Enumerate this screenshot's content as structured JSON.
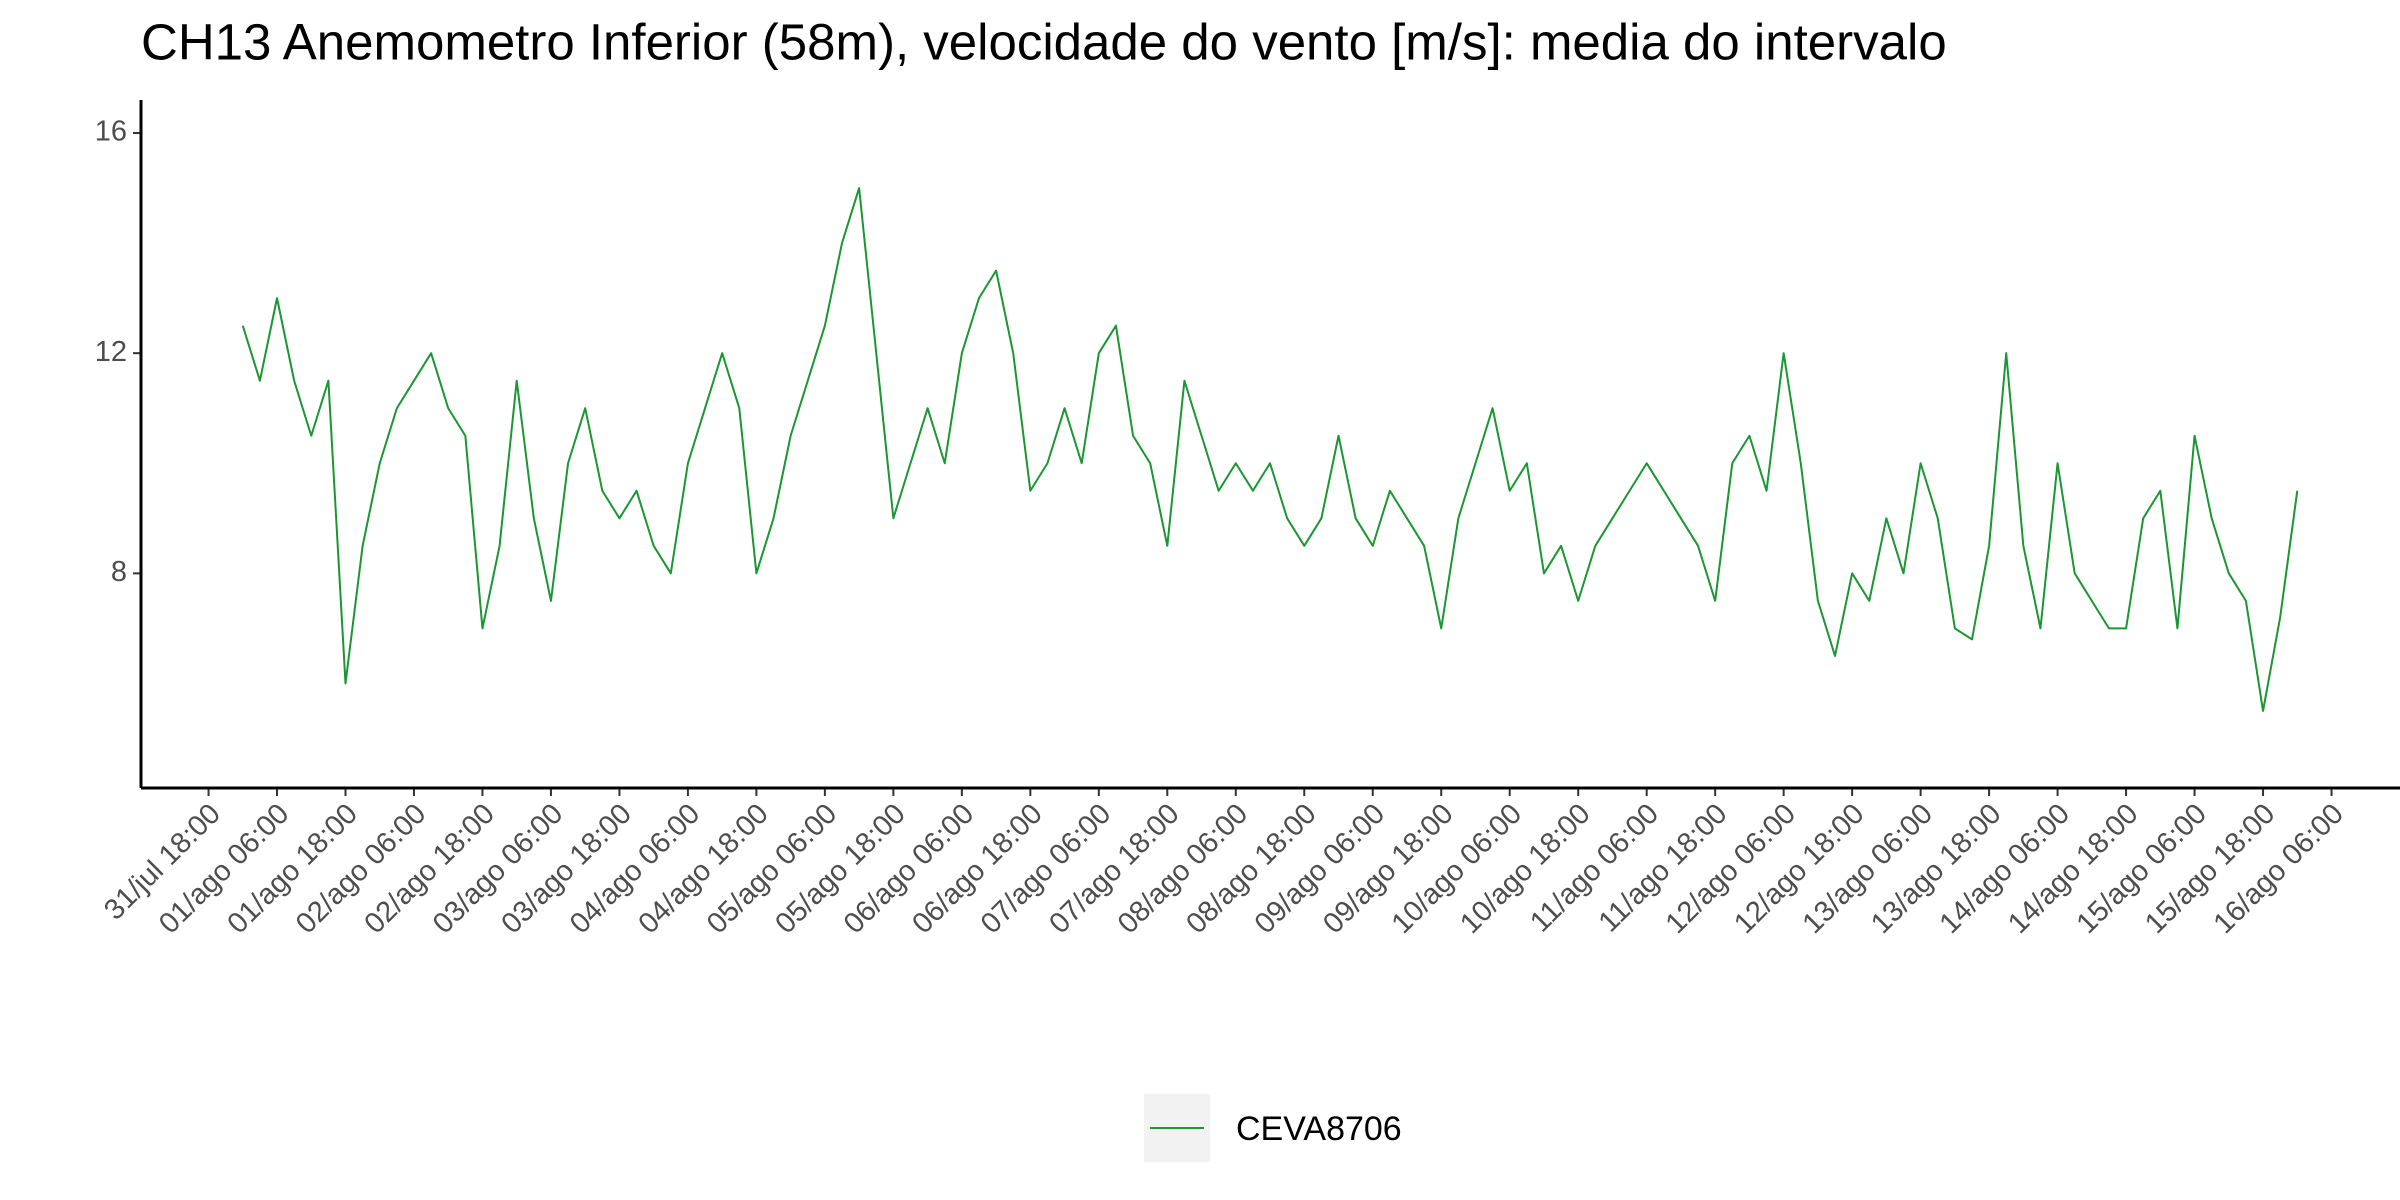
{
  "chart_data": {
    "type": "line",
    "title": "CH13 Anemometro Inferior (58m), velocidade do vento [m/s]: media do intervalo",
    "x": [
      "01/ago 00:00",
      "01/ago 03:00",
      "01/ago 06:00",
      "01/ago 09:00",
      "01/ago 12:00",
      "01/ago 15:00",
      "01/ago 18:00",
      "01/ago 21:00",
      "02/ago 00:00",
      "02/ago 03:00",
      "02/ago 06:00",
      "02/ago 09:00",
      "02/ago 12:00",
      "02/ago 15:00",
      "02/ago 18:00",
      "02/ago 21:00",
      "03/ago 00:00",
      "03/ago 03:00",
      "03/ago 06:00",
      "03/ago 09:00",
      "03/ago 12:00",
      "03/ago 15:00",
      "03/ago 18:00",
      "03/ago 21:00",
      "04/ago 00:00",
      "04/ago 03:00",
      "04/ago 06:00",
      "04/ago 09:00",
      "04/ago 12:00",
      "04/ago 15:00",
      "04/ago 18:00",
      "04/ago 21:00",
      "05/ago 00:00",
      "05/ago 03:00",
      "05/ago 06:00",
      "05/ago 09:00",
      "05/ago 12:00",
      "05/ago 15:00",
      "05/ago 18:00",
      "05/ago 21:00",
      "06/ago 00:00",
      "06/ago 03:00",
      "06/ago 06:00",
      "06/ago 09:00",
      "06/ago 12:00",
      "06/ago 15:00",
      "06/ago 18:00",
      "06/ago 21:00",
      "07/ago 00:00",
      "07/ago 03:00",
      "07/ago 06:00",
      "07/ago 09:00",
      "07/ago 12:00",
      "07/ago 15:00",
      "07/ago 18:00",
      "07/ago 21:00",
      "08/ago 00:00",
      "08/ago 03:00",
      "08/ago 06:00",
      "08/ago 09:00",
      "08/ago 12:00",
      "08/ago 15:00",
      "08/ago 18:00",
      "08/ago 21:00",
      "09/ago 00:00",
      "09/ago 03:00",
      "09/ago 06:00",
      "09/ago 09:00",
      "09/ago 12:00",
      "09/ago 15:00",
      "09/ago 18:00",
      "09/ago 21:00",
      "10/ago 00:00",
      "10/ago 03:00",
      "10/ago 06:00",
      "10/ago 09:00",
      "10/ago 12:00",
      "10/ago 15:00",
      "10/ago 18:00",
      "10/ago 21:00",
      "11/ago 00:00",
      "11/ago 03:00",
      "11/ago 06:00",
      "11/ago 09:00",
      "11/ago 12:00",
      "11/ago 15:00",
      "11/ago 18:00",
      "11/ago 21:00",
      "12/ago 00:00",
      "12/ago 03:00",
      "12/ago 06:00",
      "12/ago 09:00",
      "12/ago 12:00",
      "12/ago 15:00",
      "12/ago 18:00",
      "12/ago 21:00",
      "13/ago 00:00",
      "13/ago 03:00",
      "13/ago 06:00",
      "13/ago 09:00",
      "13/ago 12:00",
      "13/ago 15:00",
      "13/ago 18:00",
      "13/ago 21:00",
      "14/ago 00:00",
      "14/ago 03:00",
      "14/ago 06:00",
      "14/ago 09:00",
      "14/ago 12:00",
      "14/ago 15:00",
      "14/ago 18:00",
      "14/ago 21:00",
      "15/ago 00:00",
      "15/ago 03:00",
      "15/ago 06:00",
      "15/ago 09:00",
      "15/ago 12:00",
      "15/ago 15:00",
      "15/ago 18:00",
      "15/ago 21:00",
      "16/ago 00:00"
    ],
    "series": [
      {
        "name": "CEVA8706",
        "color": "#1a9632",
        "values": [
          12.5,
          11.5,
          13.0,
          11.5,
          10.5,
          11.5,
          6.0,
          8.5,
          10.0,
          11.0,
          11.5,
          12.0,
          11.0,
          10.5,
          7.0,
          8.5,
          11.5,
          9.0,
          7.5,
          10.0,
          11.0,
          9.5,
          9.0,
          9.5,
          8.5,
          8.0,
          10.0,
          11.0,
          12.0,
          11.0,
          8.0,
          9.0,
          10.5,
          11.5,
          12.5,
          14.0,
          15.0,
          12.0,
          9.0,
          10.0,
          11.0,
          10.0,
          12.0,
          13.0,
          13.5,
          12.0,
          9.5,
          10.0,
          11.0,
          10.0,
          12.0,
          12.5,
          10.5,
          10.0,
          8.5,
          11.5,
          10.5,
          9.5,
          10.0,
          9.5,
          10.0,
          9.0,
          8.5,
          9.0,
          10.5,
          9.0,
          8.5,
          9.5,
          9.0,
          8.5,
          7.0,
          9.0,
          10.0,
          11.0,
          9.5,
          10.0,
          8.0,
          8.5,
          7.5,
          8.5,
          9.0,
          9.5,
          10.0,
          9.5,
          9.0,
          8.5,
          7.5,
          10.0,
          10.5,
          9.5,
          12.0,
          10.0,
          7.5,
          6.5,
          8.0,
          7.5,
          9.0,
          8.0,
          10.0,
          9.0,
          7.0,
          6.8,
          8.5,
          12.0,
          8.5,
          7.0,
          10.0,
          8.0,
          7.5,
          7.0,
          7.0,
          9.0,
          9.5,
          7.0,
          10.5,
          9.0,
          8.0,
          7.5,
          5.5,
          7.2,
          9.5
        ]
      }
    ],
    "xticks": [
      "31/jul 18:00",
      "01/ago 06:00",
      "01/ago 18:00",
      "02/ago 06:00",
      "02/ago 18:00",
      "03/ago 06:00",
      "03/ago 18:00",
      "04/ago 06:00",
      "04/ago 18:00",
      "05/ago 06:00",
      "05/ago 18:00",
      "06/ago 06:00",
      "06/ago 18:00",
      "07/ago 06:00",
      "07/ago 18:00",
      "08/ago 06:00",
      "08/ago 18:00",
      "09/ago 06:00",
      "09/ago 18:00",
      "10/ago 06:00",
      "10/ago 18:00",
      "11/ago 06:00",
      "11/ago 18:00",
      "12/ago 06:00",
      "12/ago 18:00",
      "13/ago 06:00",
      "13/ago 18:00",
      "14/ago 06:00",
      "14/ago 18:00",
      "15/ago 06:00",
      "15/ago 18:00",
      "16/ago 06:00"
    ],
    "xlim": [
      "31/jul 06:10",
      "16/ago 18:00"
    ],
    "ylim": [
      4.1,
      16.6
    ],
    "yticks": [
      8,
      12,
      16
    ],
    "grid": false,
    "legend": "bottom"
  }
}
